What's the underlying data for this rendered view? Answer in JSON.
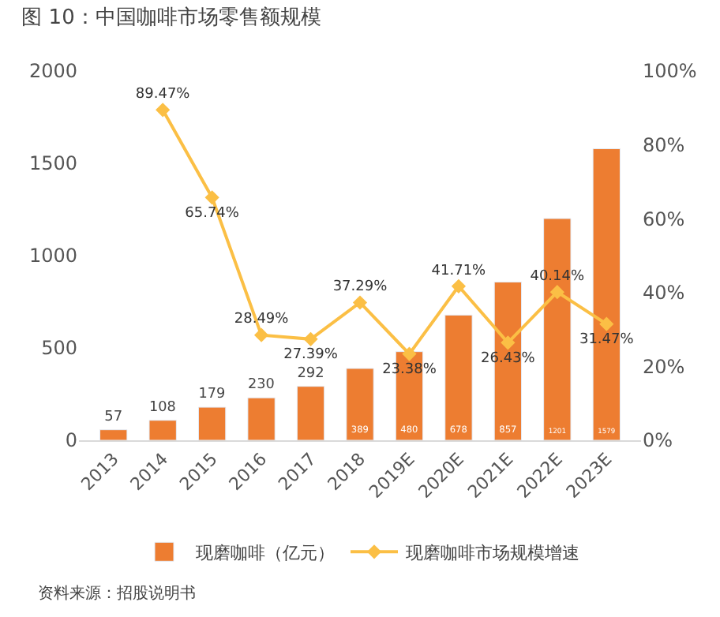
{
  "chart_data": {
    "type": "bar",
    "title": "图 10：中国咖啡市场零售额规模",
    "categories": [
      "2013",
      "2014",
      "2015",
      "2016",
      "2017",
      "2018",
      "2019E",
      "2020E",
      "2021E",
      "2022E",
      "2023E"
    ],
    "series": [
      {
        "name": "现磨咖啡（亿元）",
        "color": "#ed7d31",
        "values": [
          57,
          108,
          179,
          230,
          292,
          389,
          480,
          678,
          857,
          1201,
          1579
        ]
      },
      {
        "name": "现磨咖啡市场规模增速",
        "type": "line",
        "axis": "y2",
        "color": "#fbbf45",
        "values": [
          null,
          89.47,
          65.74,
          28.49,
          27.39,
          37.29,
          23.38,
          41.71,
          26.43,
          40.14,
          31.47
        ],
        "value_labels": [
          null,
          "89.47%",
          "65.74%",
          "28.49%",
          "27.39%",
          "37.29%",
          "23.38%",
          "41.71%",
          "26.43%",
          "40.14%",
          "31.47%"
        ]
      }
    ],
    "ylim": [
      0,
      2000
    ],
    "yticks": [
      0,
      500,
      1000,
      1500,
      2000
    ],
    "y2lim": [
      0,
      100
    ],
    "y2ticks": [
      {
        "value": 0,
        "label": "0%"
      },
      {
        "value": 20,
        "label": "20%"
      },
      {
        "value": 40,
        "label": "40%"
      },
      {
        "value": 60,
        "label": "60%"
      },
      {
        "value": 80,
        "label": "80%"
      },
      {
        "value": 100,
        "label": "100%"
      }
    ],
    "data_labels": true,
    "legend": "bottom",
    "marker": "diamond",
    "annotations": [
      "资料来源：招股说明书"
    ]
  }
}
